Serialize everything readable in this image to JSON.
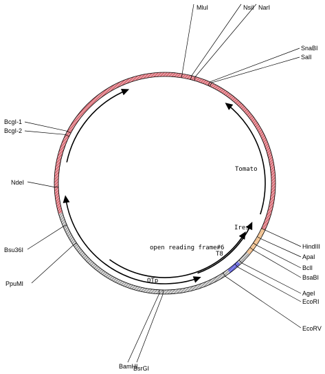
{
  "plasmid_map": {
    "sites": [
      {
        "name": "MluI"
      },
      {
        "name": "NsiI"
      },
      {
        "name": "NarI"
      },
      {
        "name": "SnaBI"
      },
      {
        "name": "SalI"
      },
      {
        "name": "HindIII"
      },
      {
        "name": "ApaI"
      },
      {
        "name": "BclI"
      },
      {
        "name": "BsaBI"
      },
      {
        "name": "AgeI"
      },
      {
        "name": "EcoRI"
      },
      {
        "name": "EcoRV"
      },
      {
        "name": "BsrGI"
      },
      {
        "name": "BamHI"
      },
      {
        "name": "PpuMI"
      },
      {
        "name": "Bsu36I"
      },
      {
        "name": "NdeI"
      },
      {
        "name": "BcgI-2"
      },
      {
        "name": "BcgI-1"
      }
    ],
    "segments": [
      {
        "feature": "red",
        "color": "#c8303c"
      },
      {
        "feature": "tomato",
        "color": "#c8303c"
      },
      {
        "feature": "ires",
        "color": "#e8a060"
      },
      {
        "feature": "t8",
        "color": "#2e2ec8"
      },
      {
        "feature": "backbone",
        "color": "#888888"
      }
    ],
    "features": [
      {
        "name": "Tomato"
      },
      {
        "name": "Ires"
      },
      {
        "name": "open reading frame#6"
      },
      {
        "name": "T8"
      },
      {
        "name": "OTp"
      }
    ]
  }
}
